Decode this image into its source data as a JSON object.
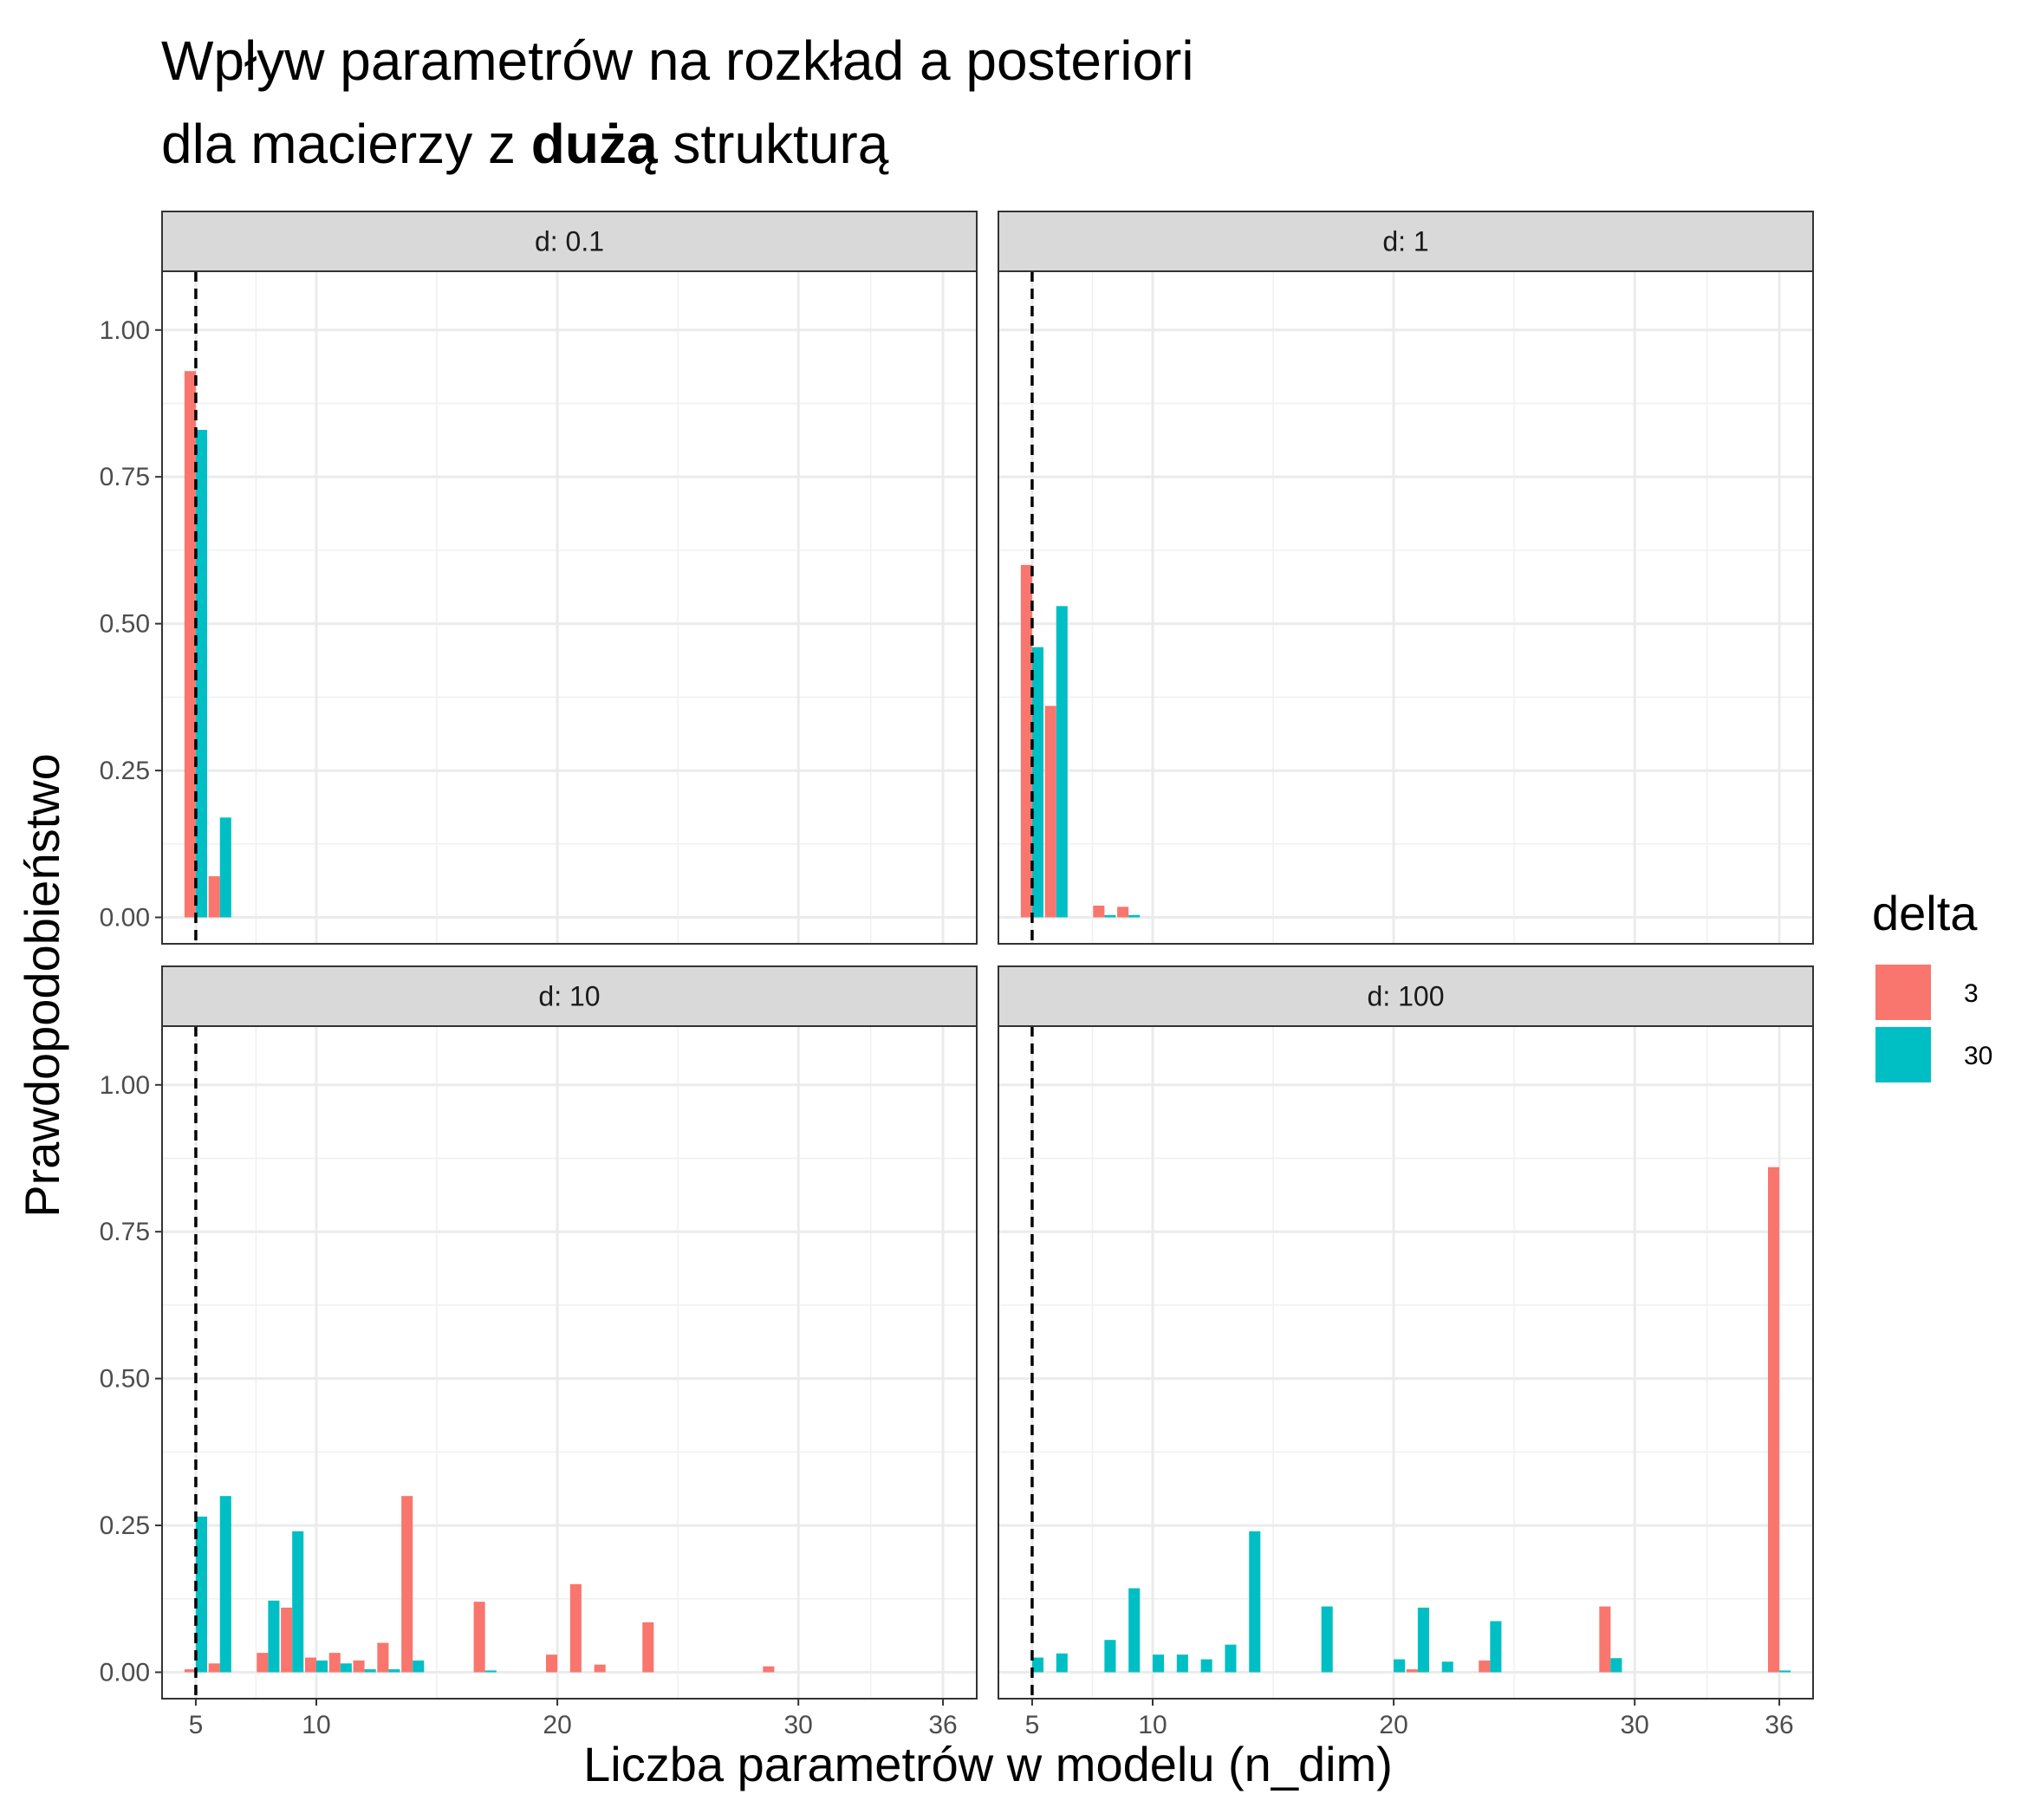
{
  "title": {
    "line1": "Wpływ parametrów na rozkład a posteriori",
    "line2_pre": "dla macierzy z ",
    "line2_bold": "dużą",
    "line2_post": " strukturą"
  },
  "chart_data": {
    "type": "bar",
    "xlabel": "Liczba parametrów w modelu (n_dim)",
    "ylabel": "Prawdopodobieństwo",
    "xlim": [
      3.6,
      37.4
    ],
    "ylim": [
      -0.045,
      1.1
    ],
    "x_ticks": [
      5,
      10,
      20,
      30,
      36
    ],
    "x_tick_labels": [
      "5",
      "10",
      "20",
      "30",
      "36"
    ],
    "y_ticks": [
      0,
      0.25,
      0.5,
      0.75,
      1
    ],
    "y_tick_labels": [
      "0.00",
      "0.25",
      "0.50",
      "0.75",
      "1.00"
    ],
    "reference_line": {
      "x": 5,
      "style": "dashed"
    },
    "legend": {
      "title": "delta",
      "position": "right",
      "entries": [
        {
          "label": "3",
          "color": "#F8766D"
        },
        {
          "label": "30",
          "color": "#00BFC4"
        }
      ]
    },
    "grid": true,
    "bar_width": 0.47,
    "facets": [
      {
        "label": "d: 0.1",
        "series": [
          {
            "name": "3",
            "color": "#F8766D",
            "x": [
              5,
              6
            ],
            "values": [
              0.93,
              0.07
            ]
          },
          {
            "name": "30",
            "color": "#00BFC4",
            "x": [
              5,
              6
            ],
            "values": [
              0.83,
              0.17
            ]
          }
        ]
      },
      {
        "label": "d: 1",
        "series": [
          {
            "name": "3",
            "color": "#F8766D",
            "x": [
              5,
              6,
              8,
              9
            ],
            "values": [
              0.6,
              0.36,
              0.02,
              0.018
            ]
          },
          {
            "name": "30",
            "color": "#00BFC4",
            "x": [
              5,
              6,
              8,
              9
            ],
            "values": [
              0.46,
              0.53,
              0.004,
              0.004
            ]
          }
        ]
      },
      {
        "label": "d: 10",
        "series": [
          {
            "name": "3",
            "color": "#F8766D",
            "x": [
              5,
              6,
              8,
              9,
              10,
              11,
              12,
              13,
              14,
              17,
              20,
              21,
              22,
              24,
              29
            ],
            "values": [
              0.005,
              0.015,
              0.033,
              0.11,
              0.025,
              0.033,
              0.02,
              0.05,
              0.3,
              0.12,
              0.03,
              0.15,
              0.013,
              0.085,
              0.01
            ]
          },
          {
            "name": "30",
            "color": "#00BFC4",
            "x": [
              5,
              6,
              8,
              9,
              10,
              11,
              12,
              13,
              14,
              17
            ],
            "values": [
              0.265,
              0.3,
              0.122,
              0.24,
              0.02,
              0.015,
              0.005,
              0.005,
              0.02,
              0.003
            ]
          }
        ]
      },
      {
        "label": "d: 100",
        "series": [
          {
            "name": "3",
            "color": "#F8766D",
            "x": [
              21,
              24,
              29,
              36
            ],
            "values": [
              0.005,
              0.02,
              0.112,
              0.86
            ]
          },
          {
            "name": "30",
            "color": "#00BFC4",
            "x": [
              5,
              6,
              8,
              9,
              10,
              11,
              12,
              13,
              14,
              17,
              20,
              21,
              22,
              24,
              29,
              36
            ],
            "values": [
              0.025,
              0.032,
              0.055,
              0.143,
              0.03,
              0.03,
              0.022,
              0.047,
              0.24,
              0.112,
              0.022,
              0.11,
              0.018,
              0.087,
              0.024,
              0.003
            ]
          }
        ]
      }
    ]
  }
}
